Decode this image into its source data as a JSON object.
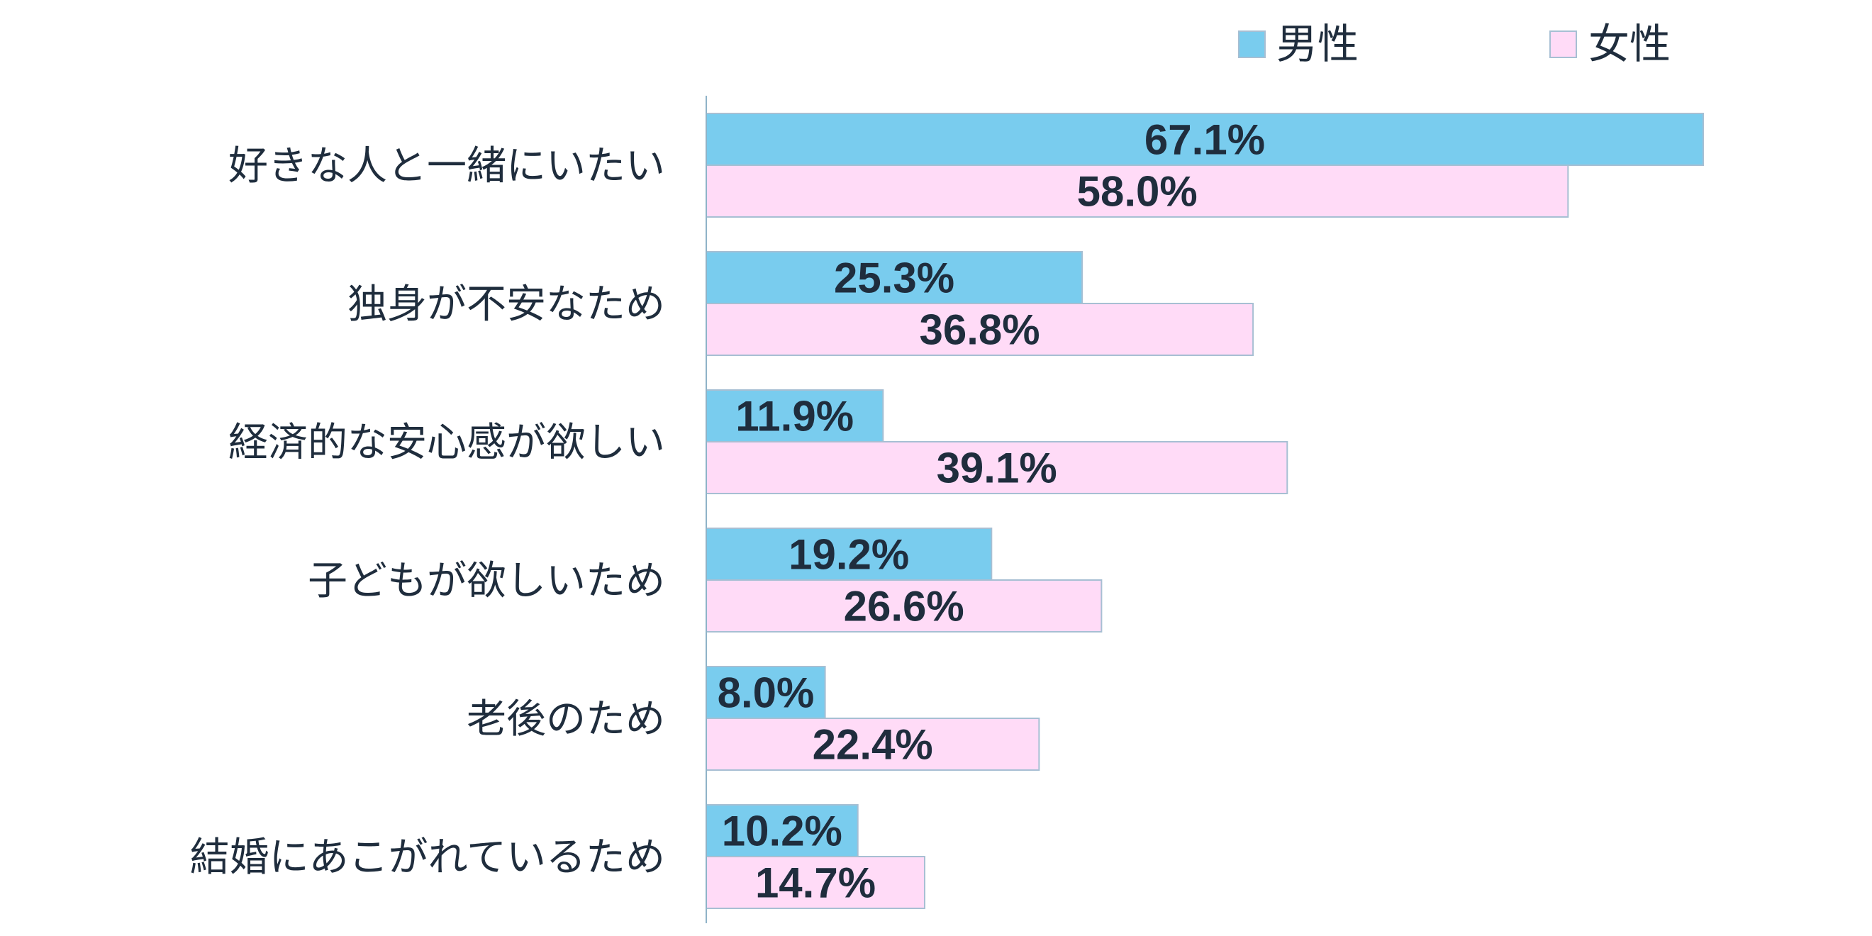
{
  "chart_data": {
    "type": "bar",
    "orientation": "horizontal",
    "categories": [
      "好きな人と一緒にいたい",
      "独身が不安なため",
      "経済的な安心感が欲しい",
      "子どもが欲しいため",
      "老後のため",
      "結婚にあこがれているため"
    ],
    "series": [
      {
        "name": "男性",
        "color": "#79CCEE",
        "border": "#A7BFD3",
        "values": [
          67.1,
          25.3,
          11.9,
          19.2,
          8.0,
          10.2
        ],
        "labels": [
          "67.1%",
          "25.3%",
          "11.9%",
          "19.2%",
          "8.0%",
          "10.2%"
        ]
      },
      {
        "name": "女性",
        "color": "#FFDBF7",
        "border": "#A7BFD3",
        "values": [
          58.0,
          36.8,
          39.1,
          26.6,
          22.4,
          14.7
        ],
        "labels": [
          "58.0%",
          "36.8%",
          "39.1%",
          "26.6%",
          "22.4%",
          "14.7%"
        ]
      }
    ],
    "xlim": [
      0,
      100
    ],
    "grid": false,
    "legend_position": "top-right",
    "title": "",
    "xlabel": "",
    "ylabel": ""
  }
}
